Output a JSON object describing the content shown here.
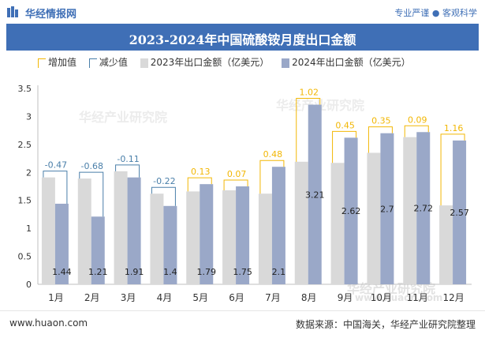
{
  "header": {
    "brand": "华经情报网",
    "tagline": "专业严谨 ● 客观科学"
  },
  "title": "2023-2024年中国硫酸铵月度出口金额",
  "legend": {
    "increase": "增加值",
    "decrease": "减少值",
    "series2023": "2023年出口金额（亿美元）",
    "series2024": "2024年出口金额（亿美元）"
  },
  "footer": {
    "url": "www.huaon.com",
    "source": "数据来源：中国海关，华经产业研究院整理"
  },
  "watermarks": {
    "center": "华经产业研究院",
    "bottom": "华经产业研究院",
    "bottom_url": "www.huaon.com"
  },
  "colors": {
    "brand": "#3f6fb6",
    "series2023": "#d9d9d9",
    "series2024": "#9aa8c8",
    "increase": "#f2b705",
    "decrease": "#4a7fa9"
  },
  "chart_data": {
    "type": "bar",
    "categories": [
      "1月",
      "2月",
      "3月",
      "4月",
      "5月",
      "6月",
      "7月",
      "8月",
      "9月",
      "10月",
      "11月",
      "12月"
    ],
    "series": [
      {
        "name": "2023年出口金额（亿美元）",
        "values": [
          1.91,
          1.89,
          2.02,
          1.62,
          1.66,
          1.68,
          1.62,
          2.19,
          2.17,
          2.35,
          2.63,
          1.41
        ]
      },
      {
        "name": "2024年出口金额（亿美元）",
        "values": [
          1.44,
          1.21,
          1.91,
          1.4,
          1.79,
          1.75,
          2.1,
          3.21,
          2.62,
          2.7,
          2.72,
          2.57
        ]
      }
    ],
    "changes": [
      "-0.47",
      "-0.68",
      "-0.11",
      "-0.22",
      "0.13",
      "0.07",
      "0.48",
      "1.02",
      "0.45",
      "0.35",
      "0.09",
      "1.16"
    ],
    "value_labels_2024": [
      "1.44",
      "1.21",
      "1.91",
      "1.4",
      "1.79",
      "1.75",
      "2.1",
      "3.21",
      "2.62",
      "2.7",
      "2.72",
      "2.57"
    ],
    "yticks": [
      "0",
      "0.5",
      "1",
      "1.5",
      "2",
      "2.5",
      "3",
      "3.5"
    ],
    "ylim": [
      0,
      3.5
    ],
    "grid": false,
    "legend_position": "top-left"
  }
}
